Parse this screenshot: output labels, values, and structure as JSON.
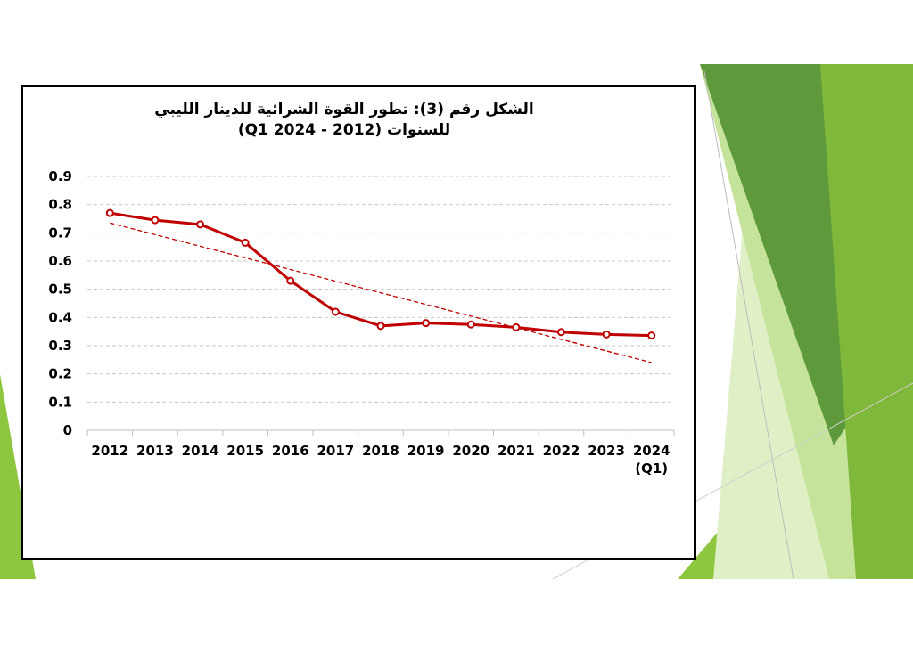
{
  "slide": {
    "colors": {
      "green_dark": "#5e9a3c",
      "green_mid": "#7fb83a",
      "green_light": "#c6e39b",
      "green_pale": "#dff0c6",
      "green_bright": "#8dc63f"
    }
  },
  "chart_data": {
    "type": "line",
    "title_lines": [
      "الشكل رقم (3): تطور القوة الشرائية للدينار الليبي",
      "للسنوات   (2012 - 2024 Q1)"
    ],
    "categories": [
      "2012",
      "2013",
      "2014",
      "2015",
      "2016",
      "2017",
      "2018",
      "2019",
      "2020",
      "2021",
      "2022",
      "2023",
      "2024"
    ],
    "category_sublabels": [
      "",
      "",
      "",
      "",
      "",
      "",
      "",
      "",
      "",
      "",
      "",
      "",
      "(Q1)"
    ],
    "series": [
      {
        "values": [
          0.77,
          0.745,
          0.73,
          0.665,
          0.53,
          0.42,
          0.37,
          0.38,
          0.375,
          0.365,
          0.348,
          0.34,
          0.336
        ],
        "color": "#c00000",
        "marker": "circle"
      }
    ],
    "trendline": {
      "type": "linear",
      "values": [
        0.735,
        0.24
      ],
      "color": "#c00000",
      "style": "dashed"
    },
    "ylim": [
      0,
      0.9
    ],
    "yticks": [
      "0",
      "0.1",
      "0.2",
      "0.3",
      "0.4",
      "0.5",
      "0.6",
      "0.7",
      "0.8",
      "0.9"
    ],
    "grid": true,
    "legend": "none"
  }
}
